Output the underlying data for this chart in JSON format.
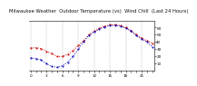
{
  "title": "Milwaukee Weather  Outdoor Temperature (vs)  Wind Chill  (Last 24 Hours)",
  "outdoor_temp": [
    32,
    32,
    31,
    27,
    24,
    20,
    20,
    23,
    28,
    35,
    42,
    50,
    55,
    59,
    62,
    64,
    64,
    63,
    60,
    56,
    50,
    45,
    42,
    38
  ],
  "wind_chill": [
    18,
    17,
    15,
    10,
    6,
    5,
    7,
    12,
    20,
    30,
    40,
    49,
    54,
    58,
    61,
    63,
    63,
    62,
    59,
    55,
    49,
    44,
    40,
    33
  ],
  "temp_color": "#cc0000",
  "wind_color": "#0000bb",
  "ylim": [
    0,
    70
  ],
  "ytick_vals": [
    10,
    20,
    30,
    40,
    50,
    60
  ],
  "ytick_labels": [
    "10",
    "20",
    "30",
    "40",
    "50",
    "60"
  ],
  "bg_color": "#ffffff",
  "plot_bg": "#ffffff",
  "grid_color": "#888888",
  "title_fontsize": 3.8,
  "tick_fontsize": 3.0,
  "line_width": 0.7,
  "marker_size": 1.0
}
